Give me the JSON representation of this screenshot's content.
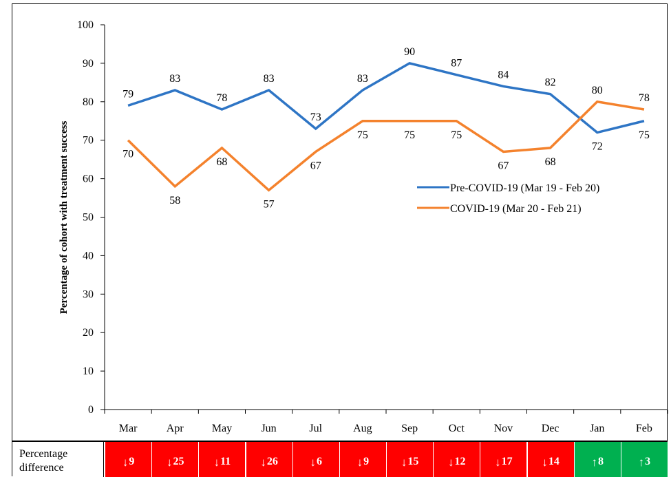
{
  "chart_data": {
    "type": "line",
    "categories": [
      "Mar",
      "Apr",
      "May",
      "Jun",
      "Jul",
      "Aug",
      "Sep",
      "Oct",
      "Nov",
      "Dec",
      "Jan",
      "Feb"
    ],
    "ylabel": "Percentage of cohort with treatment success",
    "ylim": [
      0,
      100
    ],
    "yticks": [
      0,
      10,
      20,
      30,
      40,
      50,
      60,
      70,
      80,
      90,
      100
    ],
    "grid": false,
    "legend_position": "right",
    "series": [
      {
        "name": "Pre-COVID-19 (Mar 19 - Feb 20)",
        "color": "#2e75c5",
        "values": [
          79,
          83,
          78,
          83,
          73,
          83,
          90,
          87,
          84,
          82,
          72,
          75
        ]
      },
      {
        "name": "COVID-19 (Mar 20 - Feb 21)",
        "color": "#f4822d",
        "values": [
          70,
          58,
          68,
          57,
          67,
          75,
          75,
          75,
          67,
          68,
          80,
          78
        ]
      }
    ]
  },
  "difference_row": {
    "header": "Percentage difference",
    "cells": [
      {
        "direction": "down",
        "value": "9",
        "color": "#ff0000"
      },
      {
        "direction": "down",
        "value": "25",
        "color": "#ff0000"
      },
      {
        "direction": "down",
        "value": "11",
        "color": "#ff0000"
      },
      {
        "direction": "down",
        "value": "26",
        "color": "#ff0000"
      },
      {
        "direction": "down",
        "value": "6",
        "color": "#ff0000"
      },
      {
        "direction": "down",
        "value": "9",
        "color": "#ff0000"
      },
      {
        "direction": "down",
        "value": "15",
        "color": "#ff0000"
      },
      {
        "direction": "down",
        "value": "12",
        "color": "#ff0000"
      },
      {
        "direction": "down",
        "value": "17",
        "color": "#ff0000"
      },
      {
        "direction": "down",
        "value": "14",
        "color": "#ff0000"
      },
      {
        "direction": "up",
        "value": "8",
        "color": "#00b050"
      },
      {
        "direction": "up",
        "value": "3",
        "color": "#00b050"
      }
    ]
  }
}
